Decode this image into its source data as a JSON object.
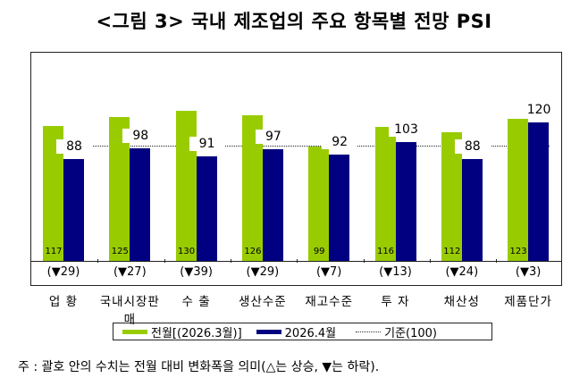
{
  "title": "<그림 3> 국내 제조업의 주요 항목별 전망 PSI",
  "chart_data": {
    "type": "bar",
    "title": "<그림 3> 국내 제조업의 주요 항목별 전망 PSI",
    "categories": [
      "업 황",
      "국내시장판매",
      "수 출",
      "생산수준",
      "재고수준",
      "투 자",
      "채산성",
      "제품단가"
    ],
    "series": [
      {
        "name": "전월[(2026.3월)]",
        "color": "#99cc00",
        "values": [
          117,
          125,
          130,
          126,
          99,
          116,
          112,
          123
        ]
      },
      {
        "name": "2026.4월",
        "color": "#000080",
        "values": [
          88,
          98,
          91,
          97,
          92,
          103,
          88,
          120
        ]
      }
    ],
    "changes": [
      "(▼29)",
      "(▼27)",
      "(▼39)",
      "(▼29)",
      "(▼7)",
      "(▼13)",
      "(▼24)",
      "(▼3)"
    ],
    "reference_line": {
      "label": "기준(100)",
      "value": 100,
      "style": "dotted"
    },
    "xlabel": "",
    "ylabel": "",
    "ylim": [
      0,
      140
    ],
    "grid": false,
    "legend_position": "bottom"
  },
  "legend": {
    "prev": "전월[(2026.3월)]",
    "cur": "2026.4월",
    "ref": "기준(100)"
  },
  "note": "주 : 괄호 안의 수치는 전월 대비 변화폭을 의미(△는 상승, ▼는 하락)."
}
